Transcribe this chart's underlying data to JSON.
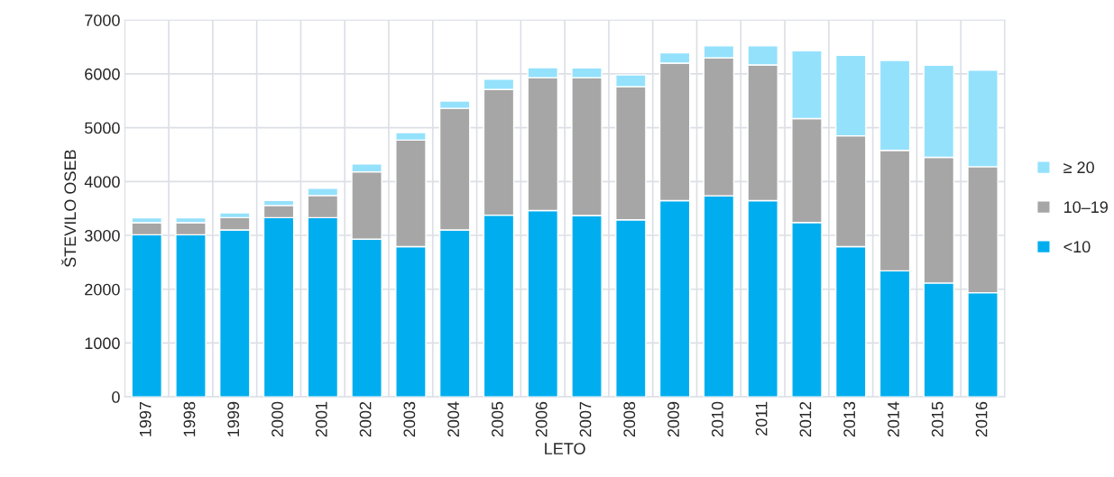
{
  "chart_data": {
    "type": "bar",
    "stacked": true,
    "xlabel": "LETO",
    "ylabel": "ŠTEVILO OSEB",
    "categories": [
      "1997",
      "1998",
      "1999",
      "2000",
      "2001",
      "2002",
      "2003",
      "2004",
      "2005",
      "2006",
      "2007",
      "2008",
      "2009",
      "2010",
      "2011",
      "2012",
      "2013",
      "2014",
      "2015",
      "2016"
    ],
    "series": [
      {
        "name": "<10",
        "color": "#00aeef",
        "values": [
          3010,
          3010,
          3100,
          3330,
          3330,
          2930,
          2790,
          3100,
          3375,
          3460,
          3370,
          3290,
          3645,
          3735,
          3645,
          3240,
          2790,
          2340,
          2115,
          1935
        ]
      },
      {
        "name": "10–19",
        "color": "#a6a6a6",
        "values": [
          225,
          225,
          230,
          225,
          410,
          1250,
          1980,
          2260,
          2335,
          2470,
          2560,
          2470,
          2555,
          2560,
          2520,
          1930,
          2060,
          2240,
          2335,
          2340
        ]
      },
      {
        "name": "≥ 20",
        "color": "#94e1fc",
        "values": [
          90,
          90,
          90,
          95,
          135,
          145,
          140,
          135,
          190,
          185,
          180,
          220,
          190,
          225,
          355,
          1260,
          1495,
          1670,
          1710,
          1795
        ]
      }
    ],
    "ylim": [
      0,
      7000
    ],
    "yticks": [
      0,
      1000,
      2000,
      3000,
      4000,
      5000,
      6000,
      7000
    ],
    "grid": true,
    "legend": "right"
  }
}
